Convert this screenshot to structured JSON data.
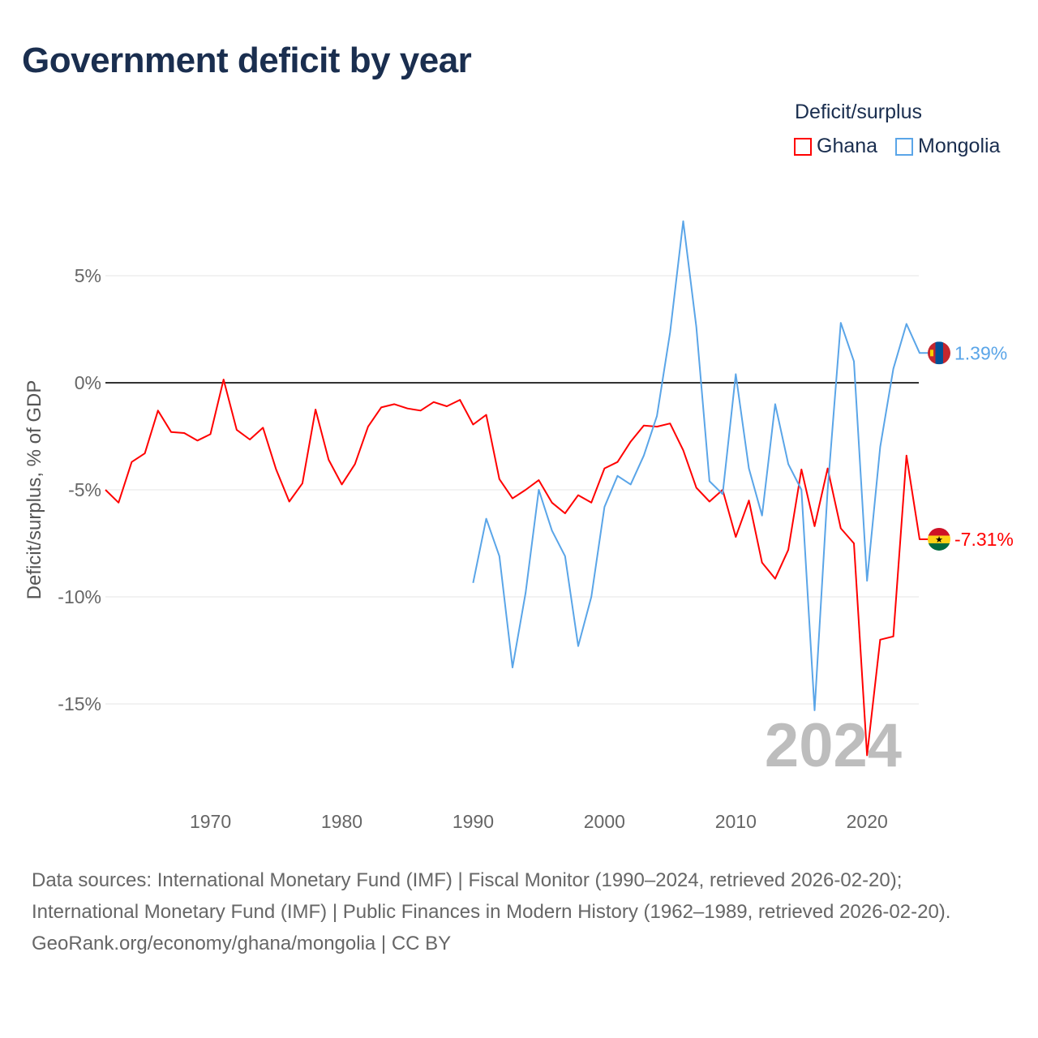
{
  "title": "Government deficit by year",
  "legend": {
    "title": "Deficit/surplus",
    "items": [
      {
        "name": "Ghana",
        "color": "#ff0000"
      },
      {
        "name": "Mongolia",
        "color": "#5aa5e8"
      }
    ]
  },
  "footer": {
    "sources": "Data sources: International Monetary Fund (IMF) | Fiscal Monitor (1990–2024, retrieved 2026-02-20); International Monetary Fund (IMF) | Public Finances in Modern History (1962–1989, retrieved 2026-02-20).",
    "credit": "GeoRank.org/economy/ghana/mongolia | CC BY"
  },
  "chart_data": {
    "type": "line",
    "title": "Government deficit by year",
    "xlabel": "",
    "ylabel": "Deficit/surplus, % of GDP",
    "xlim": [
      1962,
      2024
    ],
    "ylim": [
      -19,
      8.5
    ],
    "xticks": [
      1970,
      1980,
      1990,
      2000,
      2010,
      2020
    ],
    "yticks": [
      {
        "v": 5,
        "label": "5%"
      },
      {
        "v": 0,
        "label": "0%"
      },
      {
        "v": -5,
        "label": "-5%"
      },
      {
        "v": -10,
        "label": "-10%"
      },
      {
        "v": -15,
        "label": "-15%"
      }
    ],
    "watermark_year": "2024",
    "series": [
      {
        "name": "Ghana",
        "color": "#ff0000",
        "start": 1962,
        "end_label": "-7.31%",
        "values": [
          -5.0,
          -5.6,
          -3.7,
          -3.3,
          -1.3,
          -2.3,
          -2.35,
          -2.7,
          -2.4,
          0.15,
          -2.2,
          -2.65,
          -2.1,
          -4.05,
          -5.55,
          -4.7,
          -1.25,
          -3.6,
          -4.75,
          -3.8,
          -2.05,
          -1.15,
          -1.0,
          -1.2,
          -1.3,
          -0.9,
          -1.1,
          -0.8,
          -1.95,
          -1.5,
          -4.5,
          -5.4,
          -5.0,
          -4.55,
          -5.6,
          -6.1,
          -5.25,
          -5.6,
          -4.0,
          -3.7,
          -2.75,
          -2.0,
          -2.05,
          -1.9,
          -3.15,
          -4.9,
          -5.55,
          -5.0,
          -7.2,
          -5.5,
          -8.4,
          -9.15,
          -7.8,
          -4.05,
          -6.7,
          -4.0,
          -6.8,
          -7.5,
          -17.4,
          -12.0,
          -11.85,
          -3.4,
          -7.31
        ]
      },
      {
        "name": "Mongolia",
        "color": "#5aa5e8",
        "start": 1990,
        "end_label": "1.39%",
        "values": [
          -9.35,
          -6.35,
          -8.1,
          -13.3,
          -9.8,
          -5.0,
          -6.9,
          -8.1,
          -12.3,
          -10.0,
          -5.8,
          -4.35,
          -4.75,
          -3.4,
          -1.55,
          2.35,
          7.55,
          2.6,
          -4.6,
          -5.2,
          0.4,
          -4.0,
          -6.2,
          -1.0,
          -3.8,
          -5.0,
          -15.3,
          -5.0,
          2.8,
          1.0,
          -9.25,
          -3.0,
          0.65,
          2.75,
          1.39
        ]
      }
    ]
  }
}
